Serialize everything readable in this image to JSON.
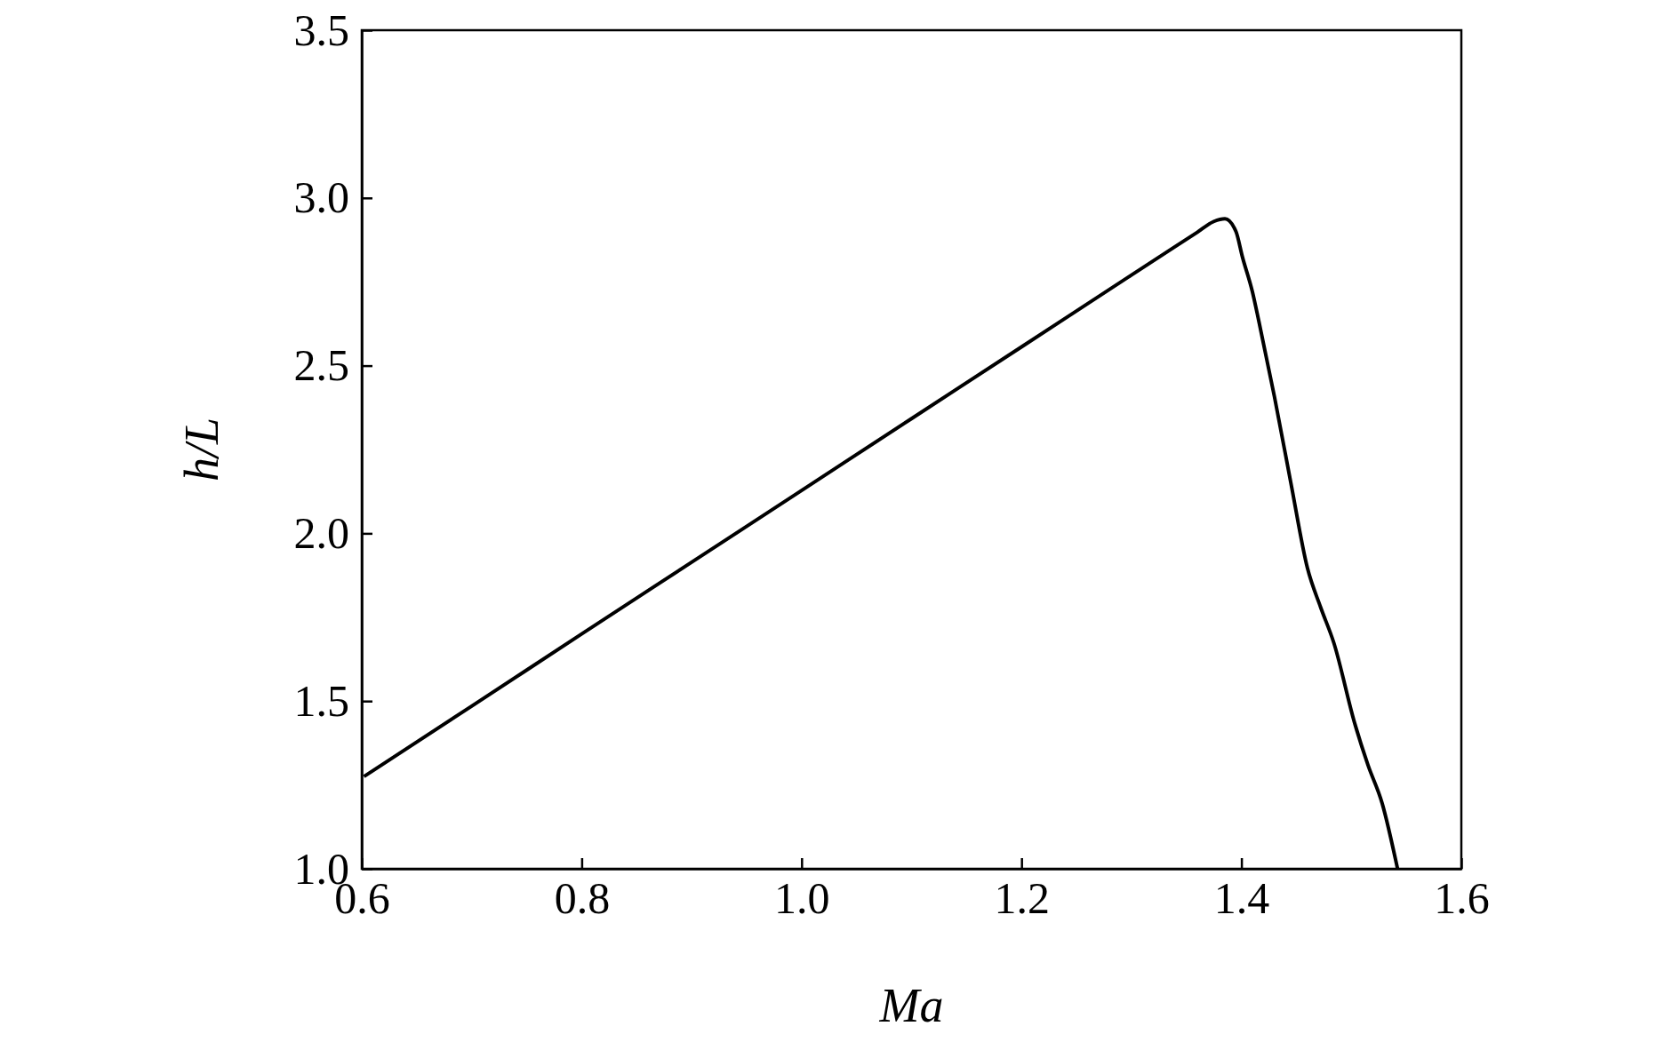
{
  "chart_data": {
    "type": "line",
    "xlabel": "Ma",
    "ylabel": "h/L",
    "series": [
      {
        "color": "#000000",
        "x": [
          0.602,
          0.7,
          0.8,
          0.9,
          1.0,
          1.1,
          1.2,
          1.3,
          1.36,
          1.375,
          1.385,
          1.395,
          1.401,
          1.41,
          1.416,
          1.43,
          1.445,
          1.46,
          1.472,
          1.484,
          1.503,
          1.515,
          1.528,
          1.542
        ],
        "values": [
          1.275,
          1.485,
          1.7,
          1.914,
          2.128,
          2.342,
          2.556,
          2.77,
          2.898,
          2.93,
          2.938,
          2.9,
          2.823,
          2.72,
          2.63,
          2.408,
          2.15,
          1.897,
          1.78,
          1.674,
          1.434,
          1.31,
          1.195,
          1.0
        ]
      }
    ],
    "xlim": [
      0.6,
      1.6
    ],
    "ylim": [
      1.0,
      3.5
    ],
    "xticks": [
      {
        "value": 0.6,
        "label": "0.6"
      },
      {
        "value": 0.8,
        "label": "0.8"
      },
      {
        "value": 1.0,
        "label": "1.0"
      },
      {
        "value": 1.2,
        "label": "1.2"
      },
      {
        "value": 1.4,
        "label": "1.4"
      },
      {
        "value": 1.6,
        "label": "1.6"
      }
    ],
    "yticks": [
      {
        "value": 1.0,
        "label": "1.0"
      },
      {
        "value": 1.5,
        "label": "1.5"
      },
      {
        "value": 2.0,
        "label": "2.0"
      },
      {
        "value": 2.5,
        "label": "2.5"
      },
      {
        "value": 3.0,
        "label": "3.0"
      },
      {
        "value": 3.5,
        "label": "3.5"
      }
    ],
    "marker": "none",
    "line_style": "solid"
  }
}
